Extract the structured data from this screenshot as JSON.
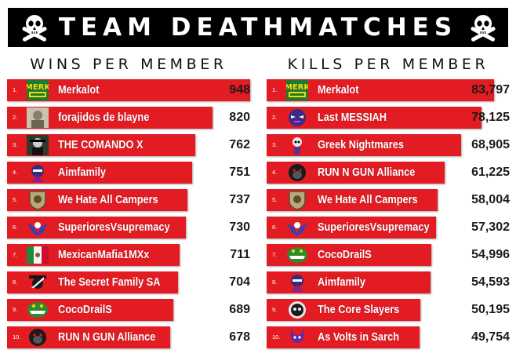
{
  "header": {
    "title": "TEAM DEATHMATCHES",
    "left_icon": "skull-crossbones-icon",
    "right_icon": "skull-crossbones-icon"
  },
  "colors": {
    "bar": "#e31b23",
    "header_bg": "#000000",
    "text_dark": "#1a1a1a"
  },
  "chart_data": [
    {
      "type": "bar",
      "orientation": "horizontal",
      "title": "WINS PER MEMBER",
      "ranks": [
        "1.",
        "2.",
        "3.",
        "4.",
        "5.",
        "6.",
        "7.",
        "8.",
        "9.",
        "10."
      ],
      "categories": [
        "Merkalot",
        "forajidos de blayne",
        "THE COMANDO X",
        "Aimfamily",
        "We Hate All Campers",
        "SuperioresVsupremacy",
        "MexicanMafia1MXx",
        "The Secret Family SA",
        "CocoDrailS",
        "RUN N GUN Alliance"
      ],
      "values": [
        948,
        820,
        762,
        751,
        737,
        730,
        711,
        704,
        689,
        678
      ],
      "value_labels": [
        "948",
        "820",
        "762",
        "751",
        "737",
        "730",
        "711",
        "704",
        "689",
        "678"
      ],
      "avatars": [
        "merk-logo-icon",
        "photo-avatar-icon",
        "soldier-avatar-icon",
        "ninja-avatar-icon",
        "shield-emblem-icon",
        "eagle-emblem-icon",
        "mexican-flag-icon",
        "zorro-avatar-icon",
        "crocodile-avatar-icon",
        "gorilla-avatar-icon"
      ]
    },
    {
      "type": "bar",
      "orientation": "horizontal",
      "title": "KILLS PER MEMBER",
      "ranks": [
        "1.",
        "2.",
        "3.",
        "4.",
        "5.",
        "6.",
        "7.",
        "8.",
        "9.",
        "10."
      ],
      "categories": [
        "Merkalot",
        "Last MESSIAH",
        "Greek Nightmares",
        "RUN N GUN Alliance",
        "We Hate All Campers",
        "SuperioresVsupremacy",
        "CocoDrailS",
        "Aimfamily",
        "The Core Slayers",
        "As Volts in Sarch"
      ],
      "values": [
        83797,
        78125,
        68905,
        61225,
        58004,
        57302,
        54996,
        54593,
        50195,
        49754
      ],
      "value_labels": [
        "83,797",
        "78,125",
        "68,905",
        "61,225",
        "58,004",
        "57,302",
        "54,996",
        "54,593",
        "50,195",
        "49,754"
      ],
      "avatars": [
        "merk-logo-icon",
        "purple-mask-icon",
        "skeleton-avatar-icon",
        "gorilla-avatar-icon",
        "shield-emblem-icon",
        "eagle-emblem-icon",
        "crocodile-avatar-icon",
        "ninja-avatar-icon",
        "skull-emblem-icon",
        "purple-demon-icon"
      ]
    }
  ]
}
